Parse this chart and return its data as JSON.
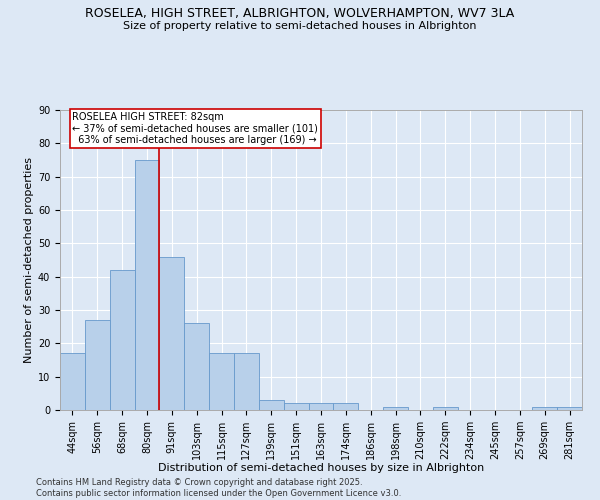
{
  "title": "ROSELEA, HIGH STREET, ALBRIGHTON, WOLVERHAMPTON, WV7 3LA",
  "subtitle": "Size of property relative to semi-detached houses in Albrighton",
  "xlabel": "Distribution of semi-detached houses by size in Albrighton",
  "ylabel": "Number of semi-detached properties",
  "bar_labels": [
    "44sqm",
    "56sqm",
    "68sqm",
    "80sqm",
    "91sqm",
    "103sqm",
    "115sqm",
    "127sqm",
    "139sqm",
    "151sqm",
    "163sqm",
    "174sqm",
    "186sqm",
    "198sqm",
    "210sqm",
    "222sqm",
    "234sqm",
    "245sqm",
    "257sqm",
    "269sqm",
    "281sqm"
  ],
  "bar_values": [
    17,
    27,
    42,
    75,
    46,
    26,
    17,
    17,
    3,
    2,
    2,
    2,
    0,
    1,
    0,
    1,
    0,
    0,
    0,
    1,
    1
  ],
  "bar_color": "#b8d0ea",
  "bar_edge_color": "#6699cc",
  "vline_color": "#cc0000",
  "vline_x_index": 3,
  "annotation_line1": "ROSELEA HIGH STREET: 82sqm",
  "annotation_line2": "← 37% of semi-detached houses are smaller (101)",
  "annotation_line3": "  63% of semi-detached houses are larger (169) →",
  "ylim": [
    0,
    90
  ],
  "yticks": [
    0,
    10,
    20,
    30,
    40,
    50,
    60,
    70,
    80,
    90
  ],
  "background_color": "#dde8f5",
  "grid_color": "#ffffff",
  "footnote": "Contains HM Land Registry data © Crown copyright and database right 2025.\nContains public sector information licensed under the Open Government Licence v3.0.",
  "title_fontsize": 9,
  "subtitle_fontsize": 8,
  "axis_label_fontsize": 8,
  "tick_fontsize": 7,
  "annotation_fontsize": 7,
  "footnote_fontsize": 6
}
